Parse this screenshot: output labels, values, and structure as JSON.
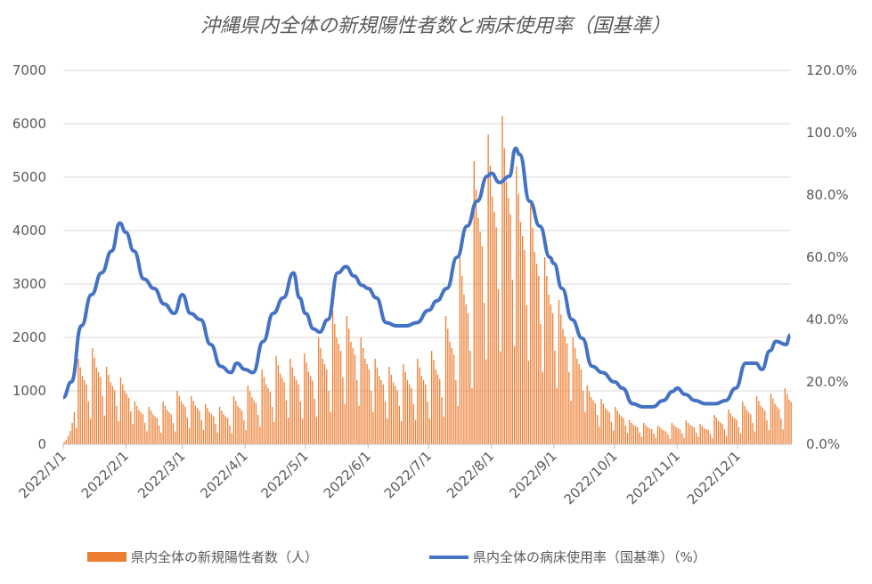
{
  "chart_data": {
    "type": "bar+line",
    "title": "沖縄県内全体の新規陽性者数と病床使用率（国基準）",
    "start_date": "2022-01-01",
    "x_tick_labels": [
      "2022/1/1",
      "2022/2/1",
      "2022/3/1",
      "2022/4/1",
      "2022/5/1",
      "2022/6/1",
      "2022/7/1",
      "2022/8/1",
      "2022/9/1",
      "2022/10/1",
      "2022/11/1",
      "2022/12/1"
    ],
    "y_left": {
      "ticks": [
        "0",
        "1000",
        "2000",
        "3000",
        "4000",
        "5000",
        "6000",
        "7000"
      ],
      "ylim": [
        0,
        7000
      ]
    },
    "y_right": {
      "ticks": [
        "0.0%",
        "20.0%",
        "40.0%",
        "60.0%",
        "80.0%",
        "100.0%",
        "120.0%"
      ],
      "ylim": [
        0,
        120
      ]
    },
    "grid": true,
    "legend_position": "bottom",
    "series": [
      {
        "name": "県内全体の新規陽性者数（人）",
        "type": "bar",
        "axis": "left",
        "color": "#ED7D31",
        "daily_values": [
          50,
          80,
          150,
          250,
          400,
          600,
          300,
          1600,
          1440,
          1280,
          1200,
          1120,
          800,
          480,
          1800,
          1620,
          1440,
          1350,
          1260,
          900,
          540,
          1450,
          1300,
          1160,
          1090,
          1010,
          720,
          430,
          1250,
          1120,
          1000,
          940,
          870,
          620,
          380,
          800,
          720,
          640,
          600,
          560,
          400,
          240,
          700,
          630,
          560,
          520,
          490,
          350,
          210,
          800,
          720,
          640,
          600,
          560,
          400,
          240,
          1000,
          900,
          800,
          750,
          700,
          500,
          300,
          900,
          810,
          720,
          680,
          630,
          450,
          270,
          750,
          680,
          600,
          560,
          520,
          380,
          220,
          700,
          630,
          560,
          520,
          490,
          350,
          210,
          900,
          810,
          720,
          680,
          630,
          450,
          270,
          1100,
          990,
          880,
          820,
          770,
          550,
          330,
          1400,
          1260,
          1120,
          1050,
          980,
          700,
          420,
          1650,
          1480,
          1320,
          1240,
          1160,
          820,
          500,
          1600,
          1440,
          1280,
          1200,
          1120,
          800,
          480,
          1700,
          1530,
          1360,
          1280,
          1190,
          850,
          510,
          2000,
          1800,
          1600,
          1500,
          1400,
          1000,
          600,
          2500,
          2250,
          2000,
          1880,
          1750,
          1250,
          750,
          2400,
          2160,
          1920,
          1800,
          1680,
          1200,
          720,
          2000,
          1800,
          1600,
          1500,
          1400,
          1000,
          600,
          1600,
          1440,
          1280,
          1200,
          1120,
          800,
          480,
          1450,
          1300,
          1160,
          1090,
          1010,
          720,
          430,
          1500,
          1350,
          1200,
          1120,
          1050,
          750,
          450,
          1600,
          1440,
          1280,
          1200,
          1120,
          800,
          480,
          1750,
          1580,
          1400,
          1310,
          1220,
          880,
          520,
          2400,
          2160,
          1920,
          1800,
          1680,
          1200,
          720,
          3500,
          3150,
          2800,
          2620,
          2450,
          1750,
          1050,
          5300,
          4770,
          4240,
          3980,
          3710,
          2650,
          1590,
          5800,
          5220,
          4640,
          4350,
          4060,
          2900,
          1740,
          6150,
          5540,
          4920,
          4610,
          4300,
          3080,
          1840,
          5200,
          4680,
          4160,
          3900,
          3640,
          2600,
          1560,
          4500,
          4050,
          3600,
          3380,
          3150,
          2250,
          1350,
          3500,
          3150,
          2800,
          2620,
          2450,
          1750,
          1050,
          2700,
          2430,
          2160,
          2020,
          1890,
          1350,
          810,
          2000,
          1800,
          1600,
          1500,
          1400,
          1000,
          600,
          1100,
          990,
          880,
          820,
          770,
          550,
          330,
          850,
          760,
          680,
          640,
          600,
          420,
          260,
          700,
          630,
          560,
          520,
          490,
          350,
          210,
          450,
          400,
          360,
          340,
          320,
          220,
          140,
          400,
          360,
          320,
          300,
          280,
          200,
          120,
          350,
          320,
          280,
          260,
          240,
          180,
          100,
          400,
          360,
          320,
          300,
          280,
          200,
          120,
          450,
          400,
          360,
          340,
          320,
          220,
          140,
          380,
          340,
          300,
          280,
          270,
          190,
          110,
          550,
          500,
          440,
          410,
          380,
          280,
          160,
          650,
          580,
          520,
          490,
          460,
          320,
          200,
          800,
          720,
          640,
          600,
          560,
          400,
          240,
          900,
          810,
          720,
          680,
          630,
          450,
          270,
          950,
          860,
          760,
          710,
          660,
          480,
          280,
          1050,
          940,
          840,
          790
        ]
      },
      {
        "name": "県内全体の病床使用率（国基準）（%）",
        "type": "line",
        "axis": "right",
        "color": "#4472C4",
        "points": [
          [
            "2022-01-01",
            15
          ],
          [
            "2022-01-05",
            20
          ],
          [
            "2022-01-10",
            38
          ],
          [
            "2022-01-15",
            48
          ],
          [
            "2022-01-20",
            55
          ],
          [
            "2022-01-25",
            62
          ],
          [
            "2022-01-29",
            71
          ],
          [
            "2022-02-01",
            68
          ],
          [
            "2022-02-05",
            62
          ],
          [
            "2022-02-10",
            53
          ],
          [
            "2022-02-15",
            50
          ],
          [
            "2022-02-20",
            45
          ],
          [
            "2022-02-25",
            42
          ],
          [
            "2022-03-01",
            48
          ],
          [
            "2022-03-05",
            42
          ],
          [
            "2022-03-10",
            40
          ],
          [
            "2022-03-15",
            32
          ],
          [
            "2022-03-20",
            25
          ],
          [
            "2022-03-25",
            23
          ],
          [
            "2022-03-28",
            26
          ],
          [
            "2022-04-01",
            24
          ],
          [
            "2022-04-05",
            23
          ],
          [
            "2022-04-10",
            33
          ],
          [
            "2022-04-15",
            42
          ],
          [
            "2022-04-20",
            47
          ],
          [
            "2022-04-25",
            55
          ],
          [
            "2022-04-28",
            47
          ],
          [
            "2022-05-01",
            42
          ],
          [
            "2022-05-05",
            37
          ],
          [
            "2022-05-08",
            36
          ],
          [
            "2022-05-12",
            40
          ],
          [
            "2022-05-17",
            55
          ],
          [
            "2022-05-21",
            57
          ],
          [
            "2022-05-25",
            54
          ],
          [
            "2022-05-29",
            51
          ],
          [
            "2022-06-01",
            50
          ],
          [
            "2022-06-05",
            47
          ],
          [
            "2022-06-10",
            39
          ],
          [
            "2022-06-15",
            38
          ],
          [
            "2022-06-20",
            38
          ],
          [
            "2022-06-25",
            39
          ],
          [
            "2022-07-01",
            43
          ],
          [
            "2022-07-05",
            46
          ],
          [
            "2022-07-10",
            50
          ],
          [
            "2022-07-15",
            60
          ],
          [
            "2022-07-20",
            70
          ],
          [
            "2022-07-25",
            78
          ],
          [
            "2022-07-30",
            86
          ],
          [
            "2022-08-01",
            87
          ],
          [
            "2022-08-05",
            84
          ],
          [
            "2022-08-10",
            86
          ],
          [
            "2022-08-13",
            95
          ],
          [
            "2022-08-15",
            93
          ],
          [
            "2022-08-20",
            78
          ],
          [
            "2022-08-25",
            70
          ],
          [
            "2022-08-30",
            60
          ],
          [
            "2022-09-01",
            58
          ],
          [
            "2022-09-05",
            50
          ],
          [
            "2022-09-10",
            40
          ],
          [
            "2022-09-15",
            34
          ],
          [
            "2022-09-20",
            25
          ],
          [
            "2022-09-25",
            23
          ],
          [
            "2022-10-01",
            20
          ],
          [
            "2022-10-05",
            18
          ],
          [
            "2022-10-10",
            13
          ],
          [
            "2022-10-15",
            12
          ],
          [
            "2022-10-20",
            12
          ],
          [
            "2022-10-25",
            14
          ],
          [
            "2022-10-30",
            17
          ],
          [
            "2022-11-01",
            18
          ],
          [
            "2022-11-05",
            16
          ],
          [
            "2022-11-10",
            14
          ],
          [
            "2022-11-15",
            13
          ],
          [
            "2022-11-20",
            13
          ],
          [
            "2022-11-25",
            14
          ],
          [
            "2022-11-30",
            18
          ],
          [
            "2022-12-05",
            26
          ],
          [
            "2022-12-10",
            26
          ],
          [
            "2022-12-13",
            24
          ],
          [
            "2022-12-17",
            30
          ],
          [
            "2022-12-20",
            33
          ],
          [
            "2022-12-25",
            32
          ],
          [
            "2022-12-27",
            35
          ]
        ]
      }
    ]
  }
}
